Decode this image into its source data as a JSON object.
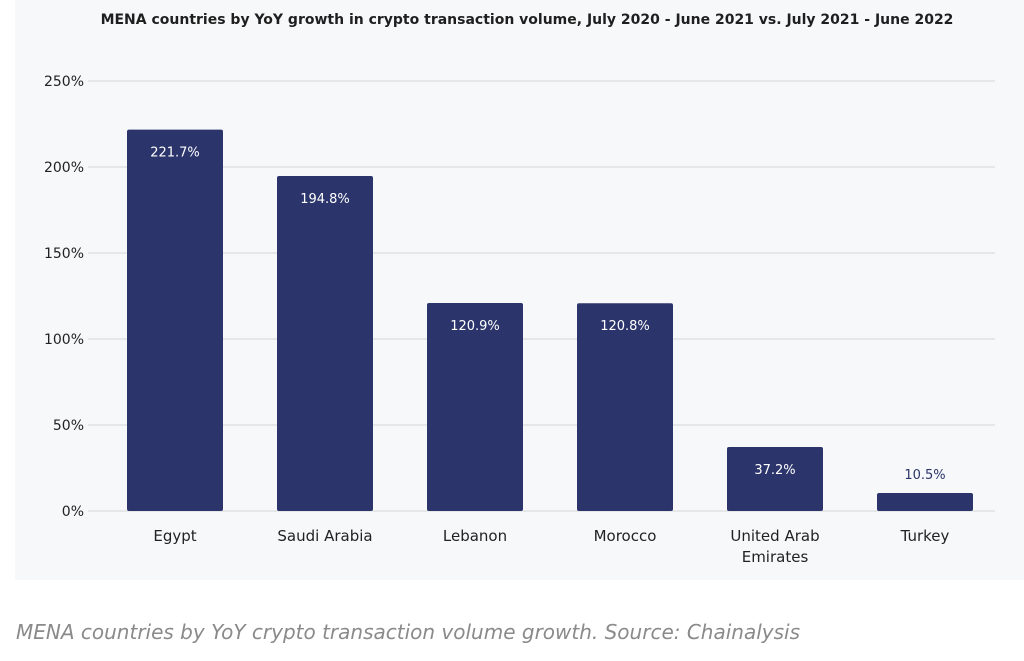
{
  "chart_data": {
    "type": "bar",
    "title": "MENA countries by YoY growth in crypto transaction volume, July 2020 - June 2021 vs. July 2021 - June 2022",
    "categories": [
      [
        "Egypt"
      ],
      [
        "Saudi Arabia"
      ],
      [
        "Lebanon"
      ],
      [
        "Morocco"
      ],
      [
        "United Arab",
        "Emirates"
      ],
      [
        "Turkey"
      ]
    ],
    "values": [
      221.7,
      194.8,
      120.9,
      120.8,
      37.2,
      10.5
    ],
    "data_labels": [
      "221.7%",
      "194.8%",
      "120.9%",
      "120.8%",
      "37.2%",
      "10.5%"
    ],
    "y_ticks": [
      "0%",
      "50%",
      "100%",
      "150%",
      "200%",
      "250%"
    ],
    "y_tick_values": [
      0,
      50,
      100,
      150,
      200,
      250
    ],
    "ylim": [
      0,
      250
    ],
    "xlabel": "",
    "ylabel": "",
    "grid": true,
    "legend": "none",
    "bar_color": "#2b356b"
  },
  "caption": "MENA countries by YoY crypto transaction volume growth. Source: Chainalysis"
}
